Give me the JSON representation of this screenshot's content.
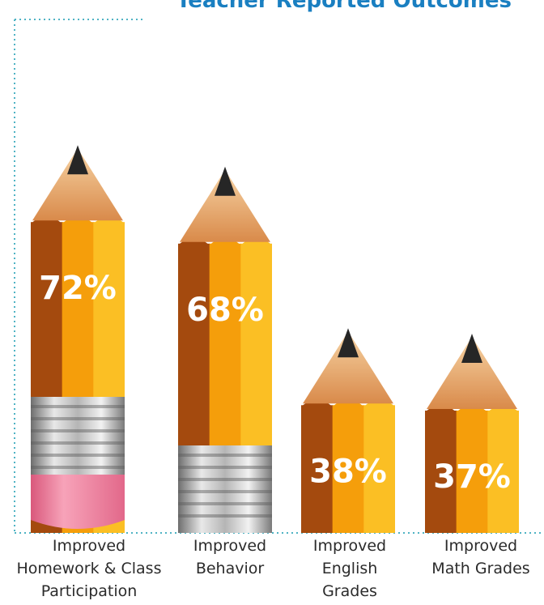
{
  "chart_data": {
    "type": "bar",
    "title": "Teacher Reported Outcomes",
    "categories": [
      [
        "Improved",
        "Homework & Class",
        "Participation"
      ],
      [
        "Improved",
        "Behavior"
      ],
      [
        "Improved",
        "English",
        "Grades"
      ],
      [
        "Improved",
        "Math Grades"
      ]
    ],
    "values": [
      72,
      68,
      38,
      37
    ],
    "value_labels": [
      "72%",
      "68%",
      "38%",
      "37%"
    ],
    "bar_style": "pencil",
    "colors": {
      "title": "#1a7fc1",
      "pencil_light": "#fbbf24",
      "pencil_mid": "#f59e0b",
      "pencil_dark": "#a44a0e",
      "ferrule": "#b8b8b8",
      "eraser": "#f28aa6",
      "dotted_border": "#4fb3c4"
    }
  }
}
